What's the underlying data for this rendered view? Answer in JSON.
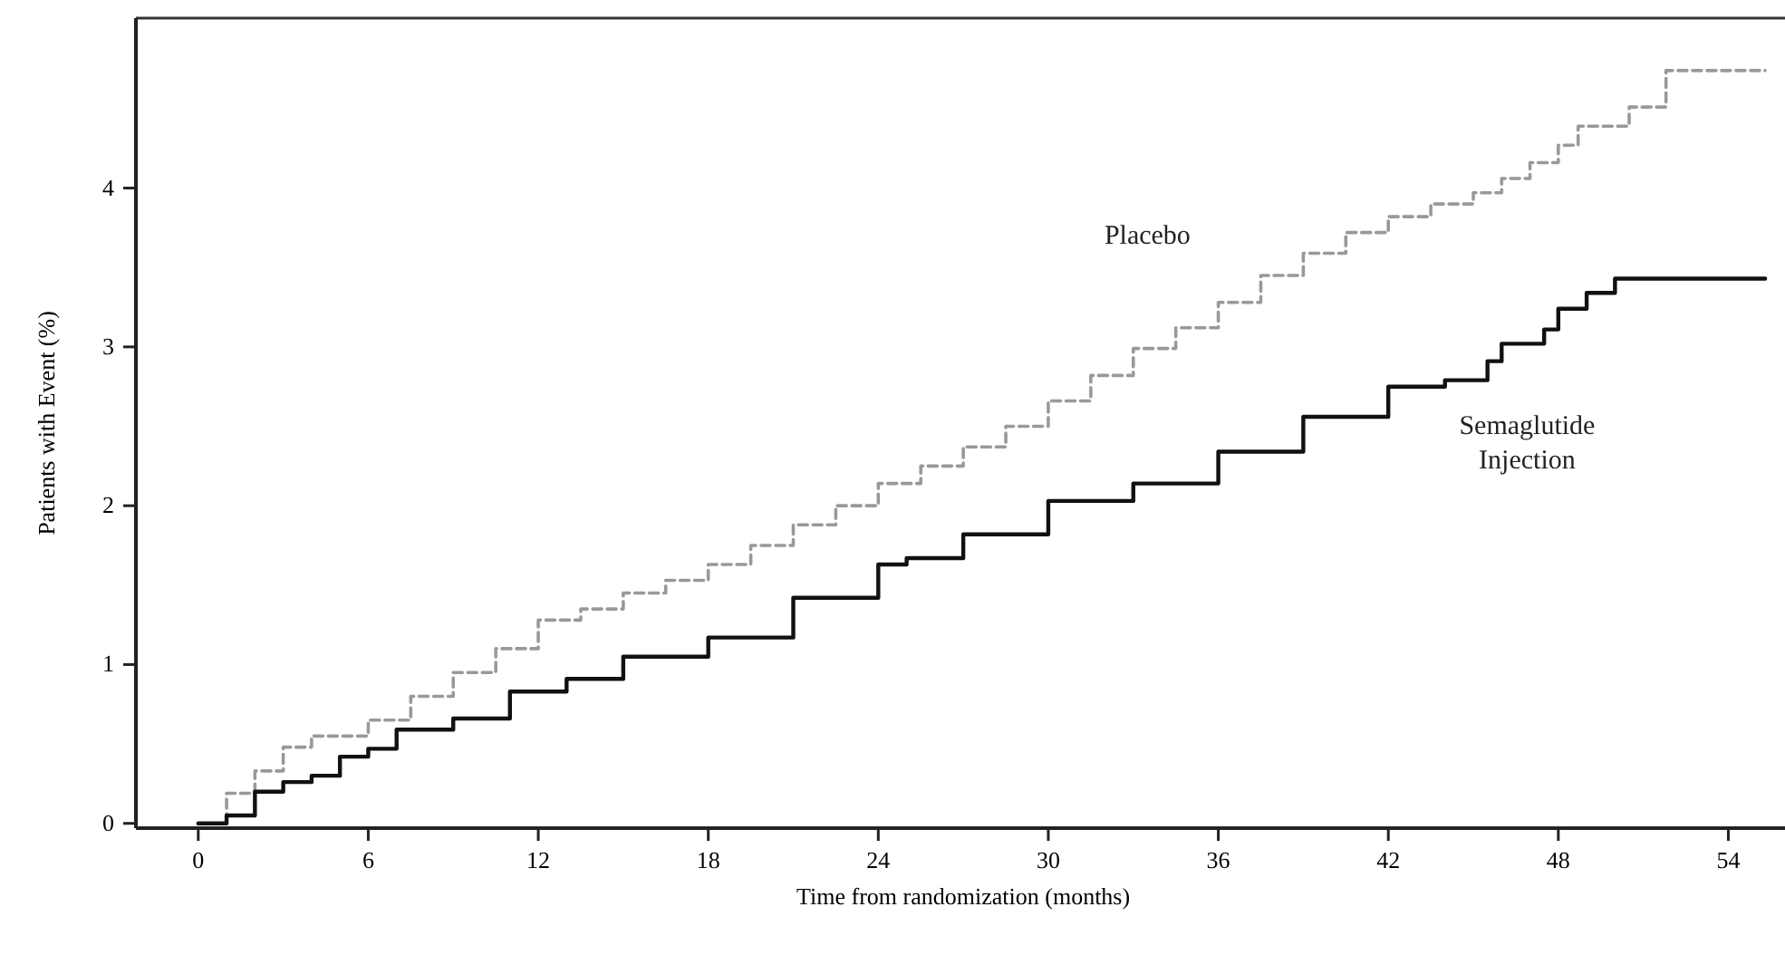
{
  "chart_data": {
    "type": "step",
    "xlabel": "Time from randomization (months)",
    "ylabel": "Patients with Event (%)",
    "xlim": [
      -2.2,
      56
    ],
    "ylim": [
      -0.03,
      5.07
    ],
    "xticks": [
      0,
      6,
      12,
      18,
      24,
      30,
      36,
      42,
      48,
      54
    ],
    "yticks": [
      0,
      1,
      2,
      3,
      4
    ],
    "grid": false,
    "series": [
      {
        "name": "Placebo",
        "color": "#999999",
        "line_style": "dashed",
        "x": [
          0,
          1,
          2,
          3,
          4,
          6,
          7.5,
          9,
          10.5,
          12,
          13.5,
          15,
          16.5,
          18,
          19.5,
          21,
          22.5,
          24,
          25.5,
          27,
          28.5,
          30,
          31.5,
          33,
          34.5,
          36,
          37.5,
          39,
          40.5,
          42,
          43.5,
          45,
          46,
          47,
          48,
          48.7,
          50.5,
          51.8,
          55.3
        ],
        "values": [
          0,
          0.19,
          0.33,
          0.48,
          0.55,
          0.65,
          0.8,
          0.95,
          1.1,
          1.28,
          1.35,
          1.45,
          1.53,
          1.63,
          1.75,
          1.88,
          2.0,
          2.14,
          2.25,
          2.37,
          2.5,
          2.66,
          2.82,
          2.99,
          3.12,
          3.28,
          3.45,
          3.59,
          3.72,
          3.82,
          3.9,
          3.97,
          4.06,
          4.16,
          4.27,
          4.39,
          4.51,
          4.74,
          4.74
        ]
      },
      {
        "name": "Semaglutide Injection",
        "color": "#111111",
        "line_style": "solid",
        "x": [
          0,
          1,
          2,
          3,
          4,
          5,
          6,
          7,
          9,
          11,
          13,
          15,
          18,
          21,
          24,
          25,
          27,
          30,
          33,
          36,
          39,
          42,
          44,
          45.5,
          46,
          47.5,
          48,
          49,
          50,
          55.3
        ],
        "values": [
          0,
          0.05,
          0.2,
          0.26,
          0.3,
          0.42,
          0.47,
          0.59,
          0.66,
          0.83,
          0.91,
          1.05,
          1.17,
          1.42,
          1.63,
          1.67,
          1.82,
          2.03,
          2.14,
          2.34,
          2.56,
          2.75,
          2.79,
          2.91,
          3.02,
          3.11,
          3.24,
          3.34,
          3.43,
          3.43
        ]
      }
    ]
  }
}
